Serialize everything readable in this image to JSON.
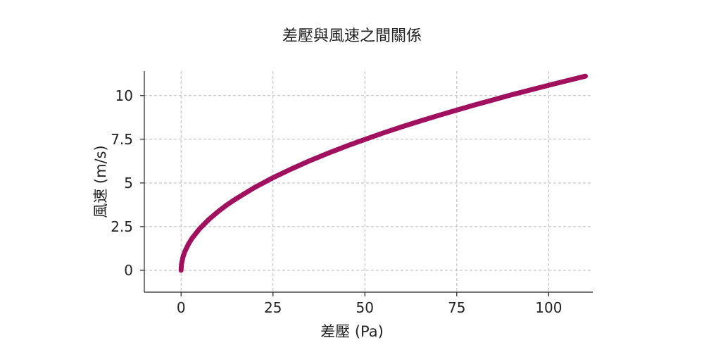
{
  "chart_data": {
    "type": "line",
    "title": "差壓與風速之間關係",
    "xlabel": "差壓 (Pa)",
    "ylabel": "風速 (m/s)",
    "xlim": [
      -10,
      112
    ],
    "ylim": [
      -1.25,
      11.4
    ],
    "xticks": [
      0,
      25,
      50,
      75,
      100
    ],
    "xtick_labels": [
      "0",
      "25",
      "50",
      "75",
      "100"
    ],
    "yticks": [
      0,
      2.5,
      5,
      7.5,
      10
    ],
    "ytick_labels": [
      "0",
      "2.5",
      "5",
      "7.5",
      "10"
    ],
    "grid": true,
    "series": [
      {
        "color": "#A0105E",
        "x": [
          0,
          0.1,
          0.5,
          1,
          2,
          3,
          5,
          7.5,
          10,
          12.5,
          15,
          20,
          25,
          30,
          35,
          40,
          45,
          50,
          55,
          60,
          65,
          70,
          75,
          80,
          85,
          90,
          95,
          100,
          105,
          110
        ],
        "y": [
          0,
          0.34,
          0.75,
          1.06,
          1.5,
          1.84,
          2.37,
          2.9,
          3.35,
          3.75,
          4.1,
          4.74,
          5.3,
          5.8,
          6.27,
          6.7,
          7.11,
          7.49,
          7.86,
          8.21,
          8.54,
          8.86,
          9.17,
          9.47,
          9.76,
          10.05,
          10.32,
          10.59,
          10.85,
          11.11
        ]
      }
    ]
  }
}
